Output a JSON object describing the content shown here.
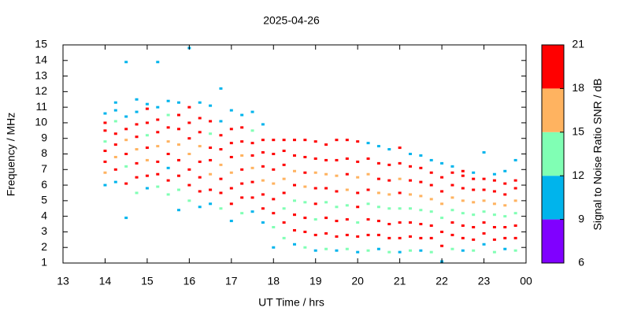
{
  "chart_data": {
    "type": "scatter",
    "title": "2025-04-26",
    "xlabel": "UT Time / hrs",
    "ylabel": "Frequency / MHz",
    "colorbar": {
      "label": "Signal to Noise Ratio SNR / dB",
      "ticks": [
        6,
        9,
        12,
        15,
        18,
        21
      ],
      "colors": [
        "#8000ff",
        "#00b4ec",
        "#80ffb4",
        "#ffb360",
        "#ff0000"
      ]
    },
    "xlim": [
      13,
      24
    ],
    "xticks": [
      13,
      14,
      15,
      16,
      17,
      18,
      19,
      20,
      21,
      22,
      23,
      {
        "value": 24,
        "label": "00"
      }
    ],
    "ylim": [
      1,
      15
    ],
    "yticks": [
      1,
      2,
      3,
      4,
      5,
      6,
      7,
      8,
      9,
      10,
      11,
      12,
      13,
      14,
      15
    ],
    "columns": [
      {
        "x": 14.0,
        "y": [
          6.0,
          6.8,
          7.5,
          8.2,
          8.8,
          9.5,
          10.0,
          10.6
        ],
        "snr": [
          10,
          16,
          19,
          20,
          14,
          19,
          18,
          11
        ]
      },
      {
        "x": 14.25,
        "y": [
          6.2,
          7.0,
          7.8,
          8.6,
          9.3,
          10.1,
          10.8,
          11.3
        ],
        "snr": [
          11,
          19,
          16,
          20,
          19,
          13,
          10,
          10
        ]
      },
      {
        "x": 14.5,
        "y": [
          3.9,
          6.1,
          7.2,
          8.0,
          8.9,
          9.6,
          10.4,
          13.9
        ],
        "snr": [
          10,
          19,
          14,
          20,
          17,
          19,
          11,
          10
        ]
      },
      {
        "x": 14.75,
        "y": [
          5.5,
          6.5,
          7.4,
          8.3,
          9.1,
          9.9,
          10.7,
          11.5
        ],
        "snr": [
          13,
          18,
          20,
          15,
          19,
          20,
          10,
          11
        ]
      },
      {
        "x": 15.0,
        "y": [
          5.8,
          6.6,
          7.6,
          8.4,
          9.2,
          10.0,
          10.9,
          11.2
        ],
        "snr": [
          10,
          19,
          16,
          20,
          14,
          19,
          19,
          10
        ]
      },
      {
        "x": 15.25,
        "y": [
          5.9,
          6.7,
          7.5,
          8.5,
          9.4,
          10.2,
          11.0,
          13.9
        ],
        "snr": [
          14,
          20,
          19,
          16,
          20,
          19,
          10,
          10
        ]
      },
      {
        "x": 15.5,
        "y": [
          5.4,
          6.3,
          7.1,
          8.0,
          8.8,
          9.7,
          10.5,
          11.4
        ],
        "snr": [
          13,
          19,
          10,
          20,
          16,
          19,
          12,
          10
        ]
      },
      {
        "x": 15.75,
        "y": [
          4.4,
          5.7,
          6.6,
          7.6,
          8.6,
          9.6,
          10.5,
          11.3
        ],
        "snr": [
          10,
          13,
          19,
          20,
          16,
          19,
          20,
          10
        ]
      },
      {
        "x": 16.0,
        "y": [
          5.0,
          6.0,
          7.0,
          8.0,
          9.0,
          10.0,
          11.0,
          14.8
        ],
        "snr": [
          14,
          19,
          20,
          16,
          19,
          20,
          19,
          10
        ]
      },
      {
        "x": 16.25,
        "y": [
          4.6,
          5.6,
          6.5,
          7.5,
          8.5,
          9.4,
          10.3,
          11.3
        ],
        "snr": [
          10,
          19,
          20,
          19,
          16,
          20,
          19,
          10
        ]
      },
      {
        "x": 16.5,
        "y": [
          4.8,
          5.7,
          6.7,
          7.6,
          8.4,
          9.3,
          10.1,
          11.1
        ],
        "snr": [
          10,
          19,
          16,
          20,
          19,
          13,
          20,
          10
        ]
      },
      {
        "x": 16.75,
        "y": [
          4.5,
          5.5,
          6.4,
          7.3,
          8.3,
          9.2,
          10.1,
          12.2
        ],
        "snr": [
          13,
          20,
          19,
          16,
          20,
          19,
          10,
          10
        ]
      },
      {
        "x": 17.0,
        "y": [
          3.7,
          4.8,
          5.8,
          6.8,
          7.8,
          8.7,
          9.6,
          10.8
        ],
        "snr": [
          10,
          19,
          20,
          16,
          19,
          20,
          19,
          10
        ]
      },
      {
        "x": 17.25,
        "y": [
          4.2,
          5.2,
          6.1,
          7.0,
          7.9,
          8.8,
          9.7,
          10.5
        ],
        "snr": [
          14,
          19,
          20,
          19,
          16,
          20,
          19,
          11
        ]
      },
      {
        "x": 17.5,
        "y": [
          4.3,
          5.2,
          6.2,
          7.1,
          7.9,
          8.7,
          9.5,
          10.7
        ],
        "snr": [
          10,
          20,
          19,
          16,
          20,
          19,
          14,
          10
        ]
      },
      {
        "x": 17.75,
        "y": [
          3.6,
          4.5,
          5.4,
          6.3,
          7.2,
          8.1,
          8.9,
          9.9
        ],
        "snr": [
          10,
          19,
          20,
          16,
          19,
          20,
          19,
          10
        ]
      },
      {
        "x": 18.0,
        "y": [
          2.0,
          3.3,
          4.2,
          5.1,
          6.1,
          7.0,
          8.0,
          8.9
        ],
        "snr": [
          10,
          13,
          19,
          20,
          16,
          19,
          20,
          19
        ]
      },
      {
        "x": 18.25,
        "y": [
          2.6,
          3.6,
          4.5,
          5.5,
          6.4,
          7.3,
          8.2,
          8.9
        ],
        "snr": [
          14,
          19,
          13,
          20,
          16,
          19,
          20,
          19
        ]
      },
      {
        "x": 18.5,
        "y": [
          2.2,
          3.1,
          4.1,
          5.0,
          6.0,
          6.9,
          7.9,
          8.9
        ],
        "snr": [
          10,
          20,
          19,
          14,
          19,
          16,
          20,
          19
        ]
      },
      {
        "x": 18.75,
        "y": [
          2.0,
          3.0,
          3.9,
          4.9,
          5.9,
          6.8,
          7.8,
          8.9
        ],
        "snr": [
          13,
          19,
          20,
          14,
          16,
          20,
          19,
          19
        ]
      },
      {
        "x": 19.0,
        "y": [
          1.8,
          2.8,
          3.8,
          4.8,
          5.8,
          6.8,
          7.7,
          8.8
        ],
        "snr": [
          10,
          19,
          13,
          20,
          19,
          16,
          20,
          19
        ]
      },
      {
        "x": 19.25,
        "y": [
          1.9,
          2.9,
          3.9,
          4.9,
          5.8,
          6.7,
          7.6,
          8.6
        ],
        "snr": [
          14,
          20,
          19,
          13,
          20,
          16,
          19,
          20
        ]
      },
      {
        "x": 19.5,
        "y": [
          1.8,
          2.7,
          3.7,
          4.6,
          5.6,
          6.6,
          7.6,
          8.9
        ],
        "snr": [
          10,
          19,
          20,
          13,
          19,
          16,
          20,
          19
        ]
      },
      {
        "x": 19.75,
        "y": [
          1.9,
          2.8,
          3.8,
          4.7,
          5.7,
          6.7,
          7.7,
          8.9
        ],
        "snr": [
          13,
          19,
          20,
          14,
          16,
          19,
          20,
          19
        ]
      },
      {
        "x": 20.0,
        "y": [
          1.7,
          2.7,
          3.6,
          4.6,
          5.5,
          6.5,
          7.5,
          8.8
        ],
        "snr": [
          10,
          19,
          13,
          20,
          19,
          16,
          20,
          19
        ]
      },
      {
        "x": 20.25,
        "y": [
          1.8,
          2.8,
          3.8,
          4.8,
          5.7,
          6.7,
          7.7,
          8.7
        ],
        "snr": [
          14,
          19,
          20,
          13,
          19,
          16,
          20,
          10
        ]
      },
      {
        "x": 20.5,
        "y": [
          1.9,
          2.8,
          3.7,
          4.6,
          5.5,
          6.4,
          7.4,
          8.5
        ],
        "snr": [
          10,
          20,
          19,
          13,
          16,
          19,
          20,
          10
        ]
      },
      {
        "x": 20.75,
        "y": [
          1.7,
          2.6,
          3.5,
          4.5,
          5.4,
          6.3,
          7.3,
          8.3
        ],
        "snr": [
          13,
          19,
          20,
          14,
          16,
          20,
          19,
          10
        ]
      },
      {
        "x": 21.0,
        "y": [
          1.7,
          2.6,
          3.6,
          4.5,
          5.5,
          6.4,
          7.4,
          8.4
        ],
        "snr": [
          10,
          19,
          20,
          13,
          19,
          16,
          20,
          19
        ]
      },
      {
        "x": 21.25,
        "y": [
          1.8,
          2.7,
          3.6,
          4.5,
          5.4,
          6.3,
          7.2,
          8.0
        ],
        "snr": [
          14,
          20,
          19,
          13,
          16,
          19,
          20,
          10
        ]
      },
      {
        "x": 21.5,
        "y": [
          1.8,
          2.6,
          3.5,
          4.4,
          5.3,
          6.2,
          7.1,
          7.9
        ],
        "snr": [
          10,
          19,
          20,
          13,
          16,
          19,
          20,
          10
        ]
      },
      {
        "x": 21.75,
        "y": [
          1.7,
          2.6,
          3.4,
          4.3,
          5.1,
          6.0,
          6.8,
          7.6
        ],
        "snr": [
          13,
          19,
          20,
          14,
          16,
          20,
          19,
          10
        ]
      },
      {
        "x": 22.0,
        "y": [
          1.1,
          2.1,
          3.0,
          3.9,
          4.8,
          5.6,
          6.5,
          7.4
        ],
        "snr": [
          10,
          19,
          20,
          13,
          16,
          19,
          20,
          10
        ]
      },
      {
        "x": 22.25,
        "y": [
          1.9,
          2.8,
          3.6,
          4.4,
          5.2,
          6.0,
          6.8,
          7.2
        ],
        "snr": [
          14,
          20,
          19,
          13,
          16,
          19,
          20,
          10
        ]
      },
      {
        "x": 22.5,
        "y": [
          1.8,
          2.6,
          3.4,
          4.2,
          5.0,
          5.8,
          6.6,
          6.9
        ],
        "snr": [
          10,
          19,
          20,
          13,
          16,
          19,
          20,
          19
        ]
      },
      {
        "x": 22.75,
        "y": [
          1.8,
          2.5,
          3.3,
          4.1,
          4.9,
          5.7,
          6.4,
          6.8
        ],
        "snr": [
          13,
          19,
          20,
          14,
          16,
          20,
          19,
          10
        ]
      },
      {
        "x": 23.0,
        "y": [
          2.2,
          2.9,
          3.6,
          4.3,
          5.0,
          5.7,
          6.4,
          8.1
        ],
        "snr": [
          10,
          20,
          19,
          13,
          16,
          19,
          20,
          10
        ]
      },
      {
        "x": 23.25,
        "y": [
          1.7,
          2.5,
          3.3,
          4.1,
          4.8,
          5.6,
          6.3,
          6.7
        ],
        "snr": [
          14,
          19,
          20,
          13,
          16,
          19,
          20,
          10
        ]
      },
      {
        "x": 23.5,
        "y": [
          1.9,
          2.6,
          3.3,
          4.0,
          4.7,
          5.4,
          6.1,
          6.9
        ],
        "snr": [
          10,
          19,
          20,
          13,
          16,
          19,
          20,
          10
        ]
      },
      {
        "x": 23.75,
        "y": [
          1.8,
          2.6,
          3.4,
          4.2,
          5.0,
          5.8,
          6.3,
          7.6
        ],
        "snr": [
          13,
          19,
          20,
          14,
          16,
          20,
          19,
          10
        ]
      }
    ]
  }
}
